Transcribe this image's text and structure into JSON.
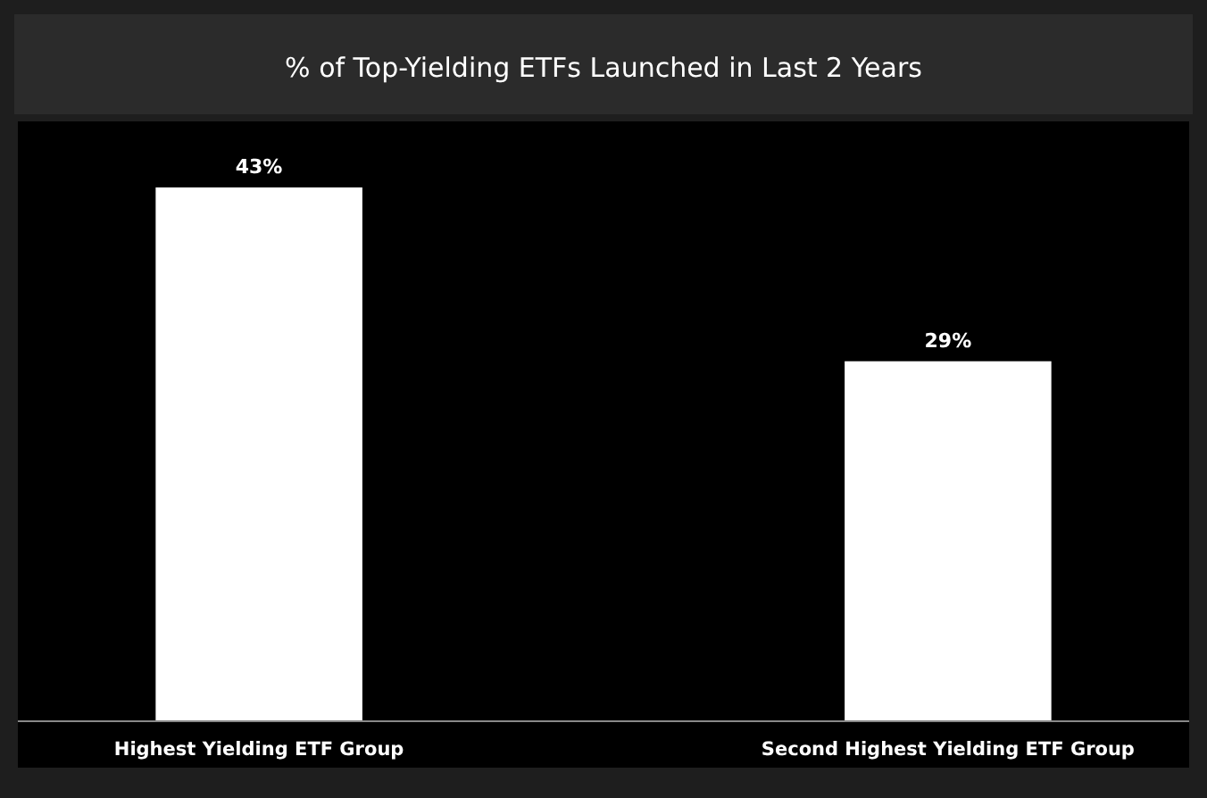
{
  "chart_data": {
    "type": "bar",
    "title": "% of Top-Yielding ETFs Launched in Last 2 Years",
    "categories": [
      "Highest Yielding ETF Group",
      "Second Highest Yielding ETF Group"
    ],
    "values": [
      43,
      29
    ],
    "value_labels": [
      "43%",
      "29%"
    ],
    "color": "#ffffff"
  }
}
